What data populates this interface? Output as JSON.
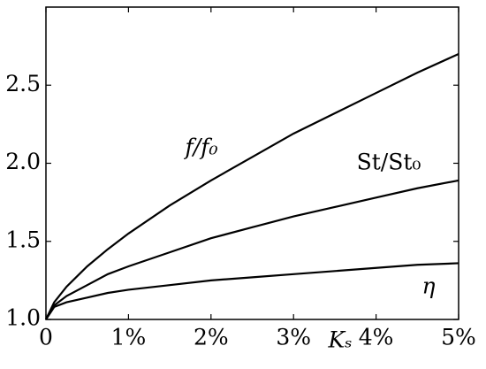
{
  "chart_data": {
    "type": "line",
    "x_label": "Kₛ",
    "x": [
      0,
      0.1,
      0.25,
      0.5,
      0.75,
      1,
      1.5,
      2,
      2.5,
      3,
      3.5,
      4,
      4.5,
      5
    ],
    "series": [
      {
        "name": "f/f₀",
        "color": "#000000",
        "values": [
          1.0,
          1.11,
          1.21,
          1.34,
          1.45,
          1.55,
          1.73,
          1.89,
          2.04,
          2.19,
          2.32,
          2.45,
          2.58,
          2.7
        ]
      },
      {
        "name": "St/St₀",
        "color": "#000000",
        "values": [
          1.0,
          1.09,
          1.15,
          1.22,
          1.29,
          1.34,
          1.43,
          1.52,
          1.59,
          1.66,
          1.72,
          1.78,
          1.84,
          1.89
        ]
      },
      {
        "name": "η",
        "color": "#000000",
        "values": [
          1.0,
          1.08,
          1.11,
          1.14,
          1.17,
          1.19,
          1.22,
          1.25,
          1.27,
          1.29,
          1.31,
          1.33,
          1.35,
          1.36
        ]
      }
    ],
    "xlim": [
      0,
      5
    ],
    "xticks": [
      0,
      {
        "value": 1,
        "label": "1%"
      },
      {
        "value": 2,
        "label": "2%"
      },
      {
        "value": 3,
        "label": "3%"
      },
      {
        "value": 4,
        "label": "4%"
      },
      {
        "value": 5,
        "label": "5%"
      }
    ],
    "ylim": [
      1,
      3
    ],
    "yticks": [
      {
        "value": 1,
        "label": "1.0"
      },
      1.5,
      {
        "value": 2,
        "label": "2.0"
      },
      2.5
    ],
    "grid": false
  }
}
